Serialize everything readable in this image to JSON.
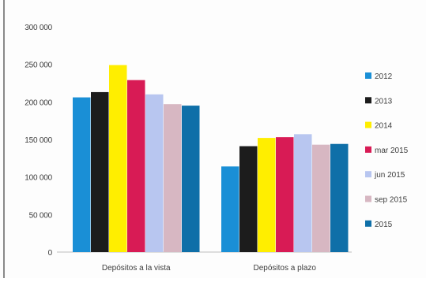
{
  "chart_data": {
    "type": "bar",
    "title": "",
    "xlabel": "",
    "ylabel": "",
    "ylim": [
      0,
      300000
    ],
    "ytick_values": [
      0,
      50000,
      100000,
      150000,
      200000,
      250000,
      300000
    ],
    "ytick_labels": [
      "0",
      "50 000",
      "100 000",
      "150 000",
      "200 000",
      "250 000",
      "300 000"
    ],
    "categories": [
      "Depósitos a la vista",
      "Depósitos a plazo"
    ],
    "legend_position": "right",
    "grid": false,
    "series": [
      {
        "name": "2012",
        "color": "#1a8fd6",
        "values": [
          206000,
          114000
        ]
      },
      {
        "name": "2013",
        "color": "#1c1c1c",
        "values": [
          213000,
          141000
        ]
      },
      {
        "name": "2014",
        "color": "#ffee00",
        "values": [
          249000,
          152000
        ]
      },
      {
        "name": "mar 2015",
        "color": "#d81b55",
        "values": [
          229000,
          153000
        ]
      },
      {
        "name": "jun 2015",
        "color": "#b8c6f0",
        "values": [
          210000,
          157000
        ]
      },
      {
        "name": "sep 2015",
        "color": "#d7b7c2",
        "values": [
          197000,
          143000
        ]
      },
      {
        "name": "2015",
        "color": "#0f6fa8",
        "values": [
          195000,
          144000
        ]
      }
    ]
  }
}
